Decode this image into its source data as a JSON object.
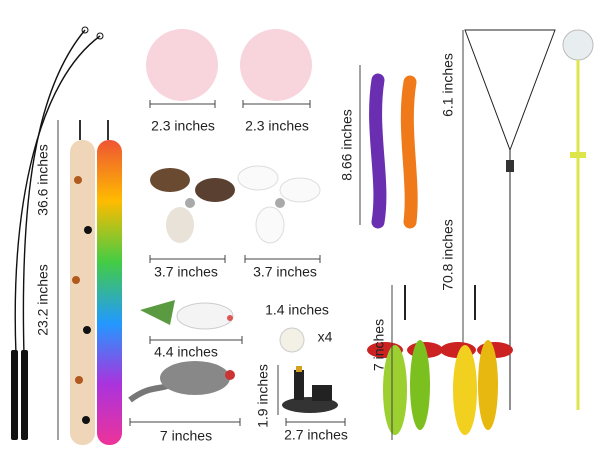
{
  "labels": [
    "36.6 inches",
    "23.2 inches",
    "2.3 inches",
    "2.3 inches",
    "8.66 inches",
    "6.1 inches",
    "70.8 inches",
    "3.7 inches",
    "3.7 inches",
    "4.4 inches",
    "1.4 inches",
    "x4",
    "7 inches",
    "1.9 inches",
    "2.7 inches",
    "7 inches"
  ]
}
